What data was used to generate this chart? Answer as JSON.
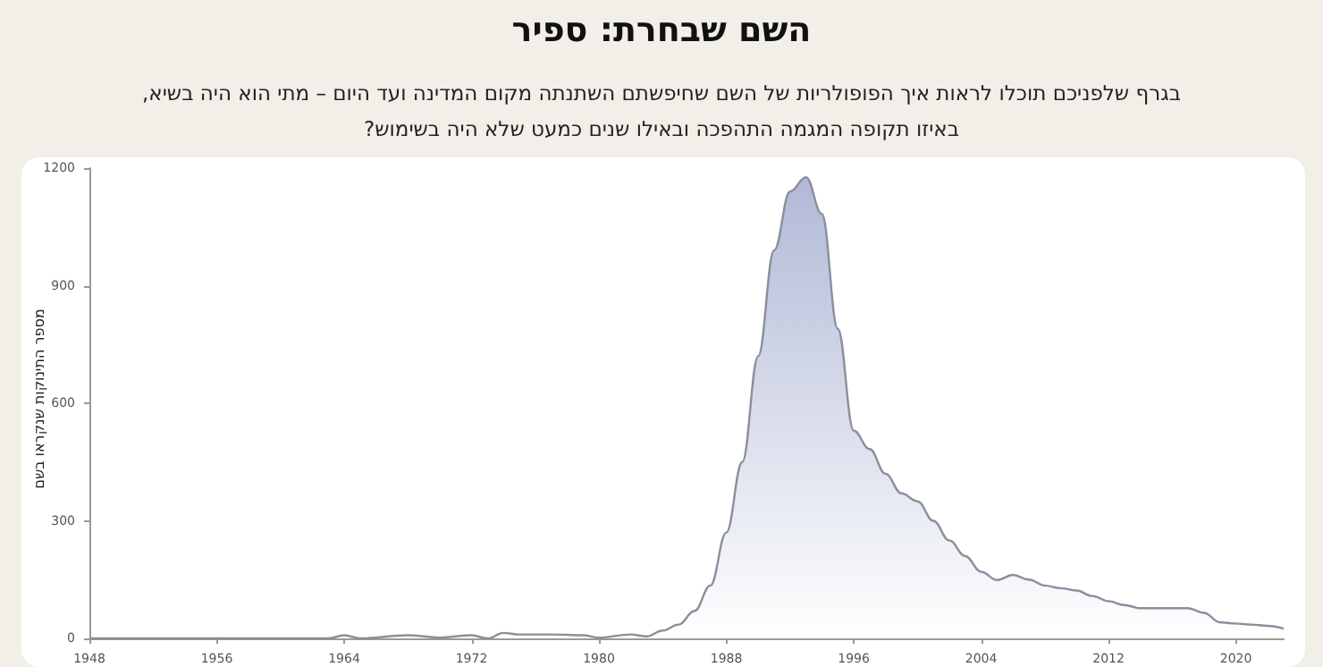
{
  "chart_data": {
    "type": "area",
    "title": "השם שבחרת: ספיר",
    "subtitle": "בגרף שלפניכם תוכלו לראות איך הפופולריות של השם שחיפשתם השתנתה מקום המדינה ועד היום – מתי הוא היה בשיא,\nבאיזו תקופה המגמה התהפכה ובאילו שנים כמעט שלא היה בשימוש?",
    "ylabel": "מספר התינוקות שנקראו בשם",
    "x": [
      1948,
      1952,
      1956,
      1960,
      1963,
      1964,
      1965,
      1968,
      1970,
      1972,
      1973,
      1974,
      1975,
      1977,
      1979,
      1980,
      1982,
      1983,
      1984,
      1985,
      1986,
      1987,
      1988,
      1989,
      1990,
      1991,
      1992,
      1993,
      1994,
      1995,
      1996,
      1997,
      1998,
      1999,
      2000,
      2001,
      2002,
      2003,
      2004,
      2005,
      2006,
      2007,
      2008,
      2009,
      2010,
      2011,
      2012,
      2013,
      2014,
      2016,
      2017,
      2018,
      2019,
      2020,
      2021,
      2022,
      2023
    ],
    "series": [
      {
        "color": "#8f9bc4",
        "values": [
          0,
          0,
          0,
          0,
          0,
          8,
          0,
          8,
          2,
          8,
          0,
          14,
          10,
          10,
          8,
          2,
          10,
          5,
          20,
          35,
          70,
          135,
          270,
          450,
          720,
          990,
          1140,
          1177,
          1083,
          790,
          530,
          483,
          420,
          370,
          350,
          300,
          250,
          210,
          170,
          149,
          162,
          150,
          135,
          128,
          122,
          108,
          95,
          85,
          77,
          77,
          77,
          65,
          41,
          38,
          35,
          32,
          25
        ]
      }
    ],
    "xlim": [
      1948,
      2023
    ],
    "xticks": [
      1948,
      1956,
      1964,
      1972,
      1980,
      1988,
      1996,
      2004,
      2012,
      2020
    ],
    "ylim": [
      0,
      1200
    ],
    "yticks": [
      0,
      300,
      600,
      900,
      1200
    ],
    "marker": "none"
  }
}
